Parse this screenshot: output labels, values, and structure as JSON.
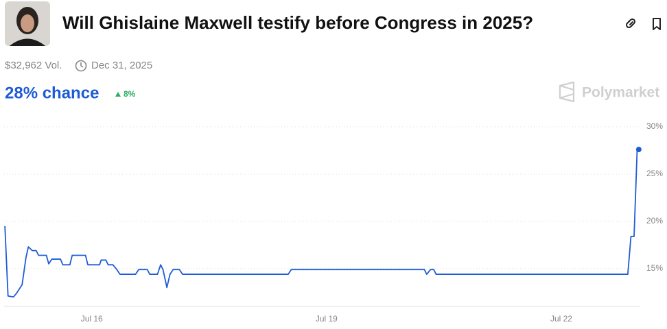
{
  "header": {
    "title": "Will Ghislaine Maxwell testify before Congress in 2025?",
    "volume": "$32,962 Vol.",
    "end_date": "Dec 31, 2025",
    "chance": "28% chance",
    "change": "8%",
    "brand": "Polymarket"
  },
  "chart_data": {
    "type": "line",
    "x": [
      14.89,
      14.93,
      15.0,
      15.04,
      15.11,
      15.16,
      15.19,
      15.24,
      15.29,
      15.32,
      15.42,
      15.45,
      15.49,
      15.6,
      15.63,
      15.72,
      15.75,
      15.92,
      15.95,
      16.1,
      16.12,
      16.18,
      16.21,
      16.27,
      16.32,
      16.36,
      16.56,
      16.6,
      16.71,
      16.74,
      16.84,
      16.88,
      16.91,
      16.96,
      17.0,
      17.04,
      17.12,
      17.16,
      18.51,
      18.55,
      20.25,
      20.28,
      20.33,
      20.37,
      20.4,
      22.85,
      22.89,
      22.93,
      22.97,
      22.99
    ],
    "series": [
      {
        "color": "#1d5bd6",
        "values": [
          19.5,
          12.1,
          12.0,
          12.4,
          13.3,
          16.2,
          17.3,
          16.9,
          16.9,
          16.4,
          16.4,
          15.5,
          16.0,
          16.0,
          15.4,
          15.4,
          16.4,
          16.4,
          15.4,
          15.4,
          15.9,
          15.9,
          15.4,
          15.4,
          14.9,
          14.4,
          14.4,
          14.9,
          14.9,
          14.4,
          14.4,
          15.4,
          14.9,
          13.0,
          14.4,
          14.9,
          14.9,
          14.4,
          14.4,
          14.9,
          14.9,
          14.4,
          14.9,
          14.9,
          14.4,
          14.4,
          18.4,
          18.4,
          27.7,
          27.6
        ]
      }
    ],
    "xlim": [
      14.88,
      23.0
    ],
    "ylim": [
      11,
      30
    ],
    "xticks": [
      {
        "value": 16,
        "label": "Jul 16"
      },
      {
        "value": 19,
        "label": "Jul 19"
      },
      {
        "value": 22,
        "label": "Jul 22"
      }
    ],
    "yticks": [
      {
        "value": 15,
        "label": "15%"
      },
      {
        "value": 20,
        "label": "20%"
      },
      {
        "value": 25,
        "label": "25%"
      },
      {
        "value": 30,
        "label": "30%"
      }
    ],
    "grid": true
  }
}
